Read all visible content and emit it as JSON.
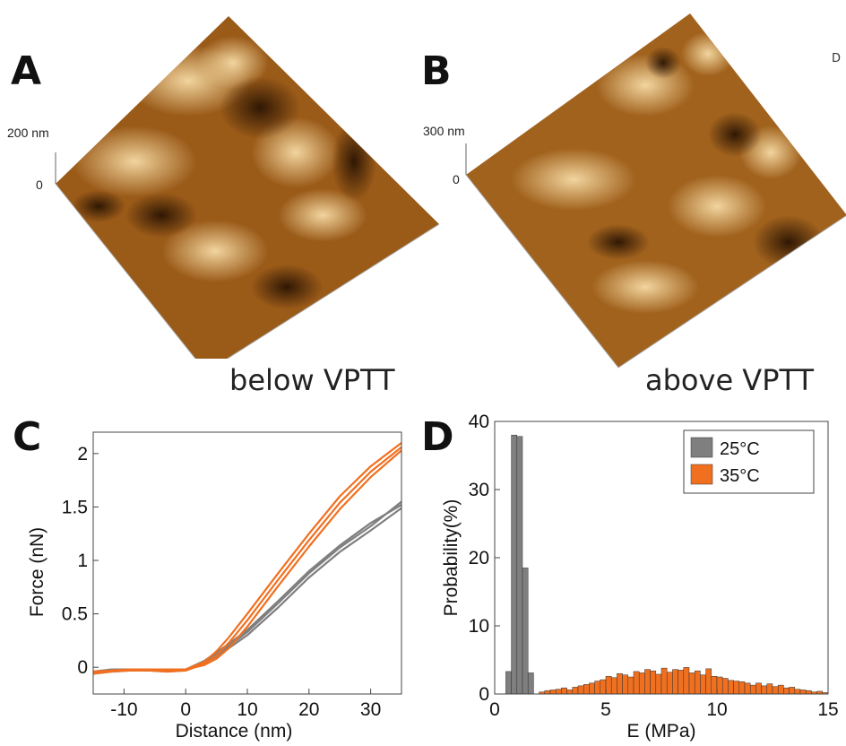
{
  "panels": {
    "a": {
      "letter": "A",
      "caption": "below VPTT",
      "z_top": "200 nm",
      "z_bottom": "0"
    },
    "b": {
      "letter": "B",
      "caption": "above VPTT",
      "z_top": "300 nm",
      "z_bottom": "0"
    },
    "c": {
      "letter": "C"
    },
    "d": {
      "letter": "D"
    }
  },
  "stray_text": "D",
  "colors": {
    "gray_series": "#7f7f7f",
    "orange_series": "#f07020",
    "afm_dark": "#3a1f05",
    "afm_mid": "#9a5a18",
    "afm_light": "#f3d7a0"
  },
  "chart_data": [
    {
      "type": "line",
      "xlabel": "Distance (nm)",
      "ylabel": "Force (nN)",
      "xlim": [
        -15,
        35
      ],
      "ylim": [
        -0.25,
        2.2
      ],
      "xticks": [
        -10,
        0,
        10,
        20,
        30
      ],
      "yticks": [
        0,
        0.5,
        1,
        1.5,
        2
      ],
      "ytick_labels": [
        "0",
        "0.5",
        "1",
        "1.5",
        "2"
      ],
      "grid": false,
      "series": [
        {
          "group": "gray",
          "x": [
            -15,
            -12,
            -9,
            -6,
            -3,
            0,
            3,
            5,
            7,
            10,
            15,
            20,
            25,
            30,
            35
          ],
          "y": [
            -0.05,
            -0.03,
            -0.02,
            -0.02,
            -0.03,
            -0.02,
            0.05,
            0.12,
            0.2,
            0.33,
            0.6,
            0.88,
            1.12,
            1.32,
            1.55
          ]
        },
        {
          "group": "gray",
          "x": [
            -15,
            -12,
            -9,
            -6,
            -3,
            0,
            3,
            5,
            7,
            10,
            15,
            20,
            25,
            30,
            35
          ],
          "y": [
            -0.06,
            -0.04,
            -0.03,
            -0.03,
            -0.04,
            -0.03,
            0.04,
            0.1,
            0.18,
            0.3,
            0.56,
            0.84,
            1.08,
            1.28,
            1.49
          ]
        },
        {
          "group": "gray",
          "x": [
            -15,
            -12,
            -9,
            -6,
            -3,
            0,
            3,
            5,
            7,
            10,
            15,
            20,
            25,
            30,
            35
          ],
          "y": [
            -0.04,
            -0.02,
            -0.02,
            -0.03,
            -0.03,
            -0.02,
            0.06,
            0.14,
            0.22,
            0.35,
            0.62,
            0.9,
            1.14,
            1.35,
            1.52
          ]
        },
        {
          "group": "orange",
          "x": [
            -15,
            -12,
            -9,
            -6,
            -3,
            0,
            3,
            5,
            7,
            10,
            15,
            20,
            25,
            30,
            35
          ],
          "y": [
            -0.05,
            -0.03,
            -0.02,
            -0.02,
            -0.03,
            -0.02,
            0.05,
            0.15,
            0.28,
            0.5,
            0.88,
            1.25,
            1.6,
            1.88,
            2.1
          ]
        },
        {
          "group": "orange",
          "x": [
            -15,
            -12,
            -9,
            -6,
            -3,
            0,
            3,
            5,
            7,
            10,
            15,
            20,
            25,
            30,
            35
          ],
          "y": [
            -0.06,
            -0.04,
            -0.03,
            -0.03,
            -0.04,
            -0.03,
            0.03,
            0.11,
            0.23,
            0.44,
            0.82,
            1.19,
            1.54,
            1.83,
            2.06
          ]
        },
        {
          "group": "orange",
          "x": [
            -15,
            -12,
            -9,
            -6,
            -3,
            0,
            3,
            5,
            7,
            10,
            15,
            20,
            25,
            30,
            35
          ],
          "y": [
            -0.04,
            -0.03,
            -0.03,
            -0.02,
            -0.02,
            -0.02,
            0.02,
            0.08,
            0.18,
            0.38,
            0.76,
            1.13,
            1.48,
            1.78,
            2.03
          ]
        }
      ]
    },
    {
      "type": "bar",
      "xlabel": "E (MPa)",
      "ylabel": "Probability(%)",
      "xlim": [
        0,
        15
      ],
      "ylim": [
        0,
        40
      ],
      "xticks": [
        0,
        5,
        10,
        15
      ],
      "yticks": [
        0,
        10,
        20,
        30,
        40
      ],
      "bin_width": 0.25,
      "legend_position": "top-right",
      "grid": false,
      "series": [
        {
          "name": "25°C",
          "color": "#7f7f7f",
          "bin_starts": [
            0.5,
            0.75,
            1.0,
            1.25,
            1.5
          ],
          "values": [
            3.3,
            38,
            37.8,
            18.5,
            3.1
          ]
        },
        {
          "name": "35°C",
          "color": "#f07020",
          "bin_starts": [
            2.0,
            2.25,
            2.5,
            2.75,
            3.0,
            3.25,
            3.5,
            3.75,
            4.0,
            4.25,
            4.5,
            4.75,
            5.0,
            5.25,
            5.5,
            5.75,
            6.0,
            6.25,
            6.5,
            6.75,
            7.0,
            7.25,
            7.5,
            7.75,
            8.0,
            8.25,
            8.5,
            8.75,
            9.0,
            9.25,
            9.5,
            9.75,
            10.0,
            10.25,
            10.5,
            10.75,
            11.0,
            11.25,
            11.5,
            11.75,
            12.0,
            12.25,
            12.5,
            12.75,
            13.0,
            13.25,
            13.5,
            13.75,
            14.0,
            14.25,
            14.5,
            14.75
          ],
          "values": [
            0.3,
            0.5,
            0.6,
            0.7,
            0.9,
            0.6,
            1.0,
            1.2,
            1.4,
            1.6,
            1.9,
            2.1,
            2.6,
            2.4,
            3.0,
            2.8,
            2.5,
            3.3,
            3.1,
            3.6,
            3.4,
            2.9,
            3.8,
            3.2,
            3.6,
            3.5,
            3.9,
            3.1,
            3.4,
            2.8,
            3.7,
            2.6,
            2.5,
            2.3,
            2.0,
            1.9,
            1.8,
            1.6,
            1.3,
            1.6,
            1.2,
            1.5,
            1.1,
            1.3,
            0.9,
            1.0,
            0.7,
            0.6,
            0.5,
            0.3,
            0.4,
            0.2
          ]
        }
      ]
    }
  ]
}
